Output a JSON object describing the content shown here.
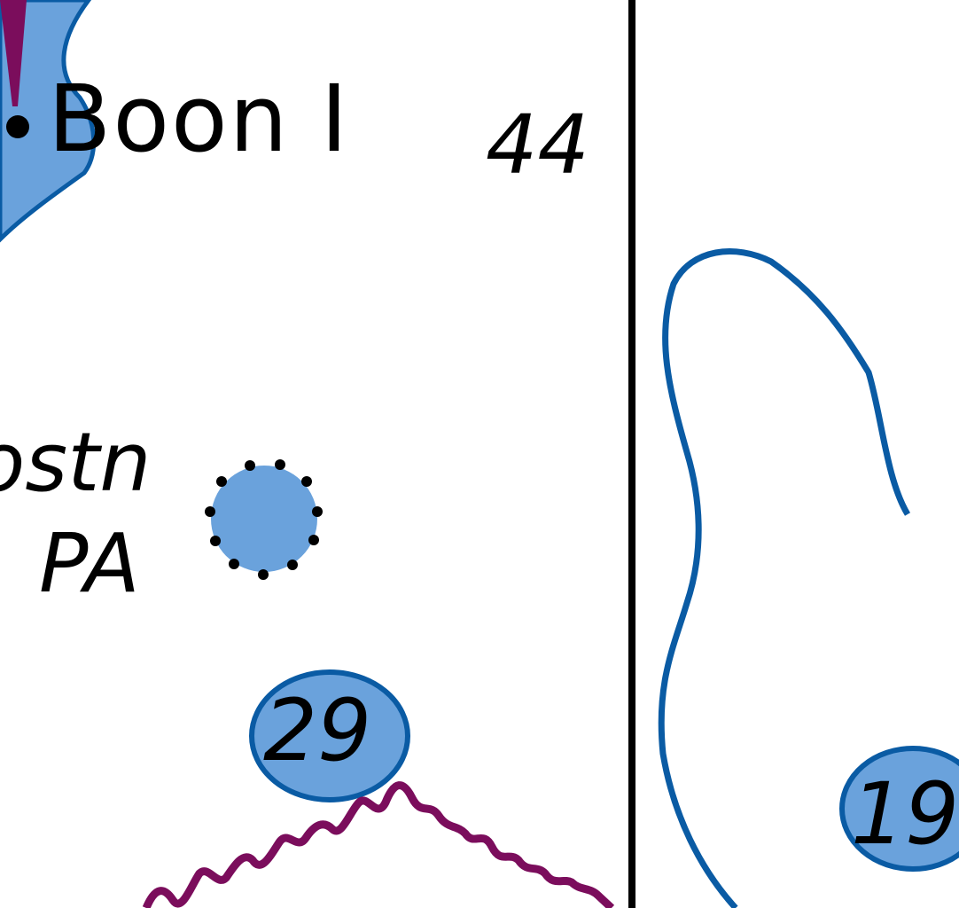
{
  "map": {
    "colors": {
      "water_fill": "#6aa2dc",
      "water_line": "#0a5ba4",
      "danger_line": "#7b0d5c",
      "ink": "#000000",
      "land": "#ffffff"
    },
    "labels": {
      "island_name": "Boon I",
      "depth_main": "44",
      "position_note_top": "ostn",
      "position_note_bottom": "PA",
      "rock_depth_left": "29",
      "rock_depth_right": "19"
    }
  }
}
